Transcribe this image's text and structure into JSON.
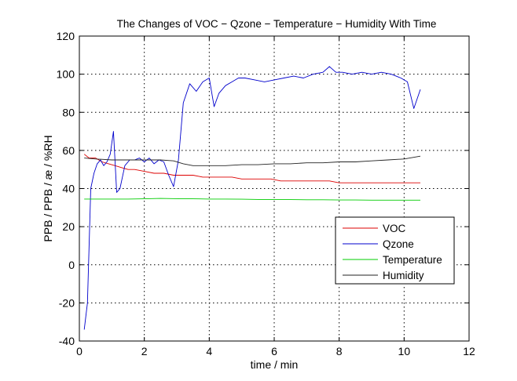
{
  "chart_data": {
    "type": "line",
    "title": "The Changes of VOC − Qzone − Temperature − Humidity With Time",
    "xlabel": "time / min",
    "ylabel": "PPB / PPB / æ / %RH",
    "xlim": [
      0,
      12
    ],
    "ylim": [
      -40,
      120
    ],
    "xticks": [
      "0",
      "2",
      "4",
      "6",
      "8",
      "10",
      "12"
    ],
    "yticks": [
      "-40",
      "-20",
      "0",
      "20",
      "40",
      "60",
      "80",
      "100",
      "120"
    ],
    "grid": true,
    "legend_position": "lower-right",
    "series": [
      {
        "name": "VOC",
        "color": "#dd0000",
        "x": [
          0.15,
          0.3,
          0.5,
          0.7,
          0.9,
          1.1,
          1.3,
          1.5,
          1.7,
          2.0,
          2.3,
          2.6,
          2.9,
          3.2,
          3.5,
          3.8,
          4.1,
          4.4,
          4.7,
          5.0,
          5.3,
          5.6,
          5.9,
          6.2,
          6.5,
          6.8,
          7.1,
          7.4,
          7.7,
          8.0,
          8.3,
          8.6,
          8.9,
          9.2,
          9.5,
          9.8,
          10.1,
          10.5
        ],
        "values": [
          58,
          56,
          56,
          54,
          53,
          52,
          51,
          50,
          50,
          49,
          48,
          48,
          47,
          47,
          47,
          46,
          46,
          46,
          46,
          45,
          45,
          45,
          45,
          44,
          44,
          44,
          44,
          44,
          44,
          43,
          43,
          43,
          43,
          43,
          43,
          43,
          43,
          43
        ]
      },
      {
        "name": "Qzone",
        "color": "#0000cc",
        "x": [
          0.15,
          0.25,
          0.35,
          0.45,
          0.55,
          0.65,
          0.75,
          0.85,
          0.95,
          1.05,
          1.15,
          1.25,
          1.4,
          1.55,
          1.7,
          1.85,
          2.0,
          2.15,
          2.3,
          2.45,
          2.6,
          2.75,
          2.9,
          3.05,
          3.2,
          3.4,
          3.6,
          3.8,
          4.0,
          4.15,
          4.3,
          4.5,
          4.7,
          4.9,
          5.1,
          5.4,
          5.7,
          6.0,
          6.3,
          6.6,
          6.9,
          7.2,
          7.5,
          7.7,
          7.9,
          8.1,
          8.4,
          8.7,
          9.0,
          9.3,
          9.6,
          9.9,
          10.1,
          10.3,
          10.5
        ],
        "values": [
          -34,
          -20,
          40,
          48,
          53,
          55,
          52,
          54,
          58,
          70,
          38,
          40,
          52,
          55,
          55,
          56,
          54,
          56,
          53,
          55,
          54,
          47,
          41,
          55,
          85,
          95,
          91,
          96,
          98,
          83,
          90,
          94,
          96,
          98,
          98,
          97,
          96,
          97,
          98,
          99,
          98,
          100,
          101,
          104,
          101,
          101,
          100,
          101,
          100,
          101,
          100,
          98,
          96,
          82,
          92
        ]
      },
      {
        "name": "Temperature",
        "color": "#00cc00",
        "x": [
          0.15,
          0.5,
          1.0,
          1.5,
          2.0,
          2.5,
          3.0,
          3.5,
          4.0,
          4.5,
          5.0,
          5.5,
          6.0,
          6.5,
          7.0,
          7.5,
          8.0,
          8.5,
          9.0,
          9.5,
          10.0,
          10.5
        ],
        "values": [
          34.5,
          34.5,
          34.5,
          34.5,
          34.6,
          34.8,
          34.7,
          34.6,
          34.5,
          34.5,
          34.4,
          34.3,
          34.2,
          34.2,
          34.1,
          34.1,
          34.0,
          34.0,
          33.9,
          33.9,
          33.9,
          33.9
        ]
      },
      {
        "name": "Humidity",
        "color": "#222222",
        "x": [
          0.15,
          0.5,
          1.0,
          1.5,
          2.0,
          2.5,
          2.9,
          3.2,
          3.5,
          4.0,
          4.5,
          5.0,
          5.5,
          6.0,
          6.5,
          7.0,
          7.5,
          8.0,
          8.5,
          9.0,
          9.5,
          10.0,
          10.5
        ],
        "values": [
          56,
          55.5,
          55,
          55,
          55,
          55,
          54.5,
          53,
          52,
          52,
          52,
          52.5,
          52.5,
          53,
          53,
          53.5,
          53.5,
          54,
          54,
          54.5,
          55,
          55.5,
          57
        ]
      }
    ]
  }
}
